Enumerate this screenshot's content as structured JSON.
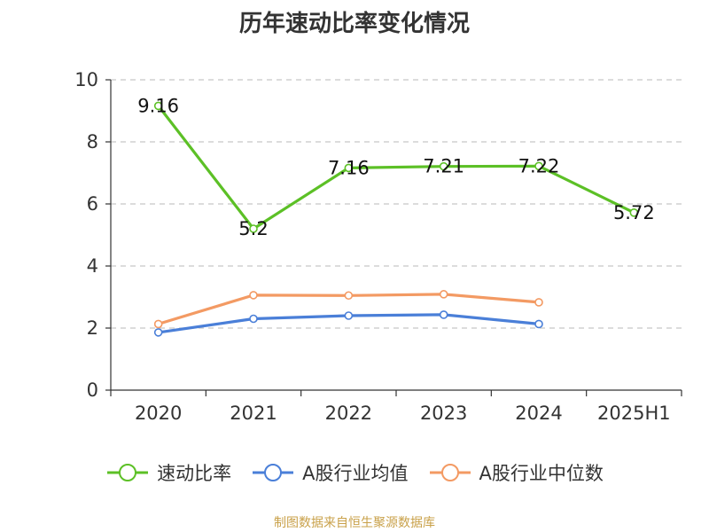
{
  "title": "历年速动比率变化情况",
  "source_note": "制图数据来自恒生聚源数据库",
  "colors": {
    "grid": "#c8c8c8",
    "axis": "#333333",
    "text": "#333333",
    "source": "#c9a14a"
  },
  "chart_data": {
    "type": "line",
    "title": "历年速动比率变化情况",
    "categories": [
      "2020",
      "2021",
      "2022",
      "2023",
      "2024",
      "2025H1"
    ],
    "ylim": [
      0,
      10
    ],
    "yticks": [
      "0",
      "2",
      "4",
      "6",
      "8",
      "10"
    ],
    "grid": true,
    "legend_position": "bottom",
    "series": [
      {
        "name": "速动比率",
        "color": "#5cc026",
        "values": [
          9.16,
          5.2,
          7.16,
          7.21,
          7.22,
          5.72
        ],
        "labels": [
          "9.16",
          "5.2",
          "7.16",
          "7.21",
          "7.22",
          "5.72"
        ],
        "show_labels": true
      },
      {
        "name": "A股行业均值",
        "color": "#4a7fd8",
        "values": [
          1.86,
          2.3,
          2.4,
          2.43,
          2.13,
          null
        ],
        "show_labels": false
      },
      {
        "name": "A股行业中位数",
        "color": "#f39a63",
        "values": [
          2.13,
          3.06,
          3.05,
          3.09,
          2.83,
          null
        ],
        "show_labels": false
      }
    ]
  }
}
